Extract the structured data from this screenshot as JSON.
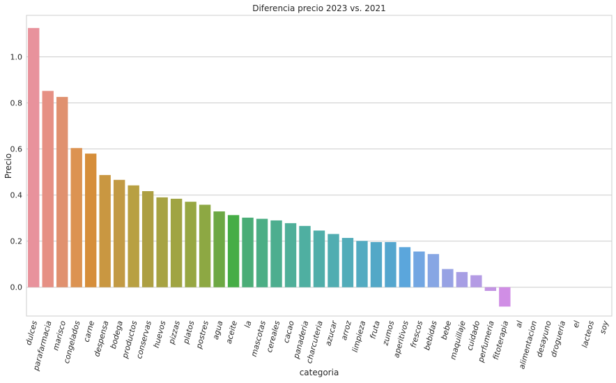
{
  "chart_data": {
    "type": "bar",
    "title": "Diferencia precio 2023 vs. 2021",
    "xlabel": "categoria",
    "ylabel": "Precio",
    "ylim": [
      -0.125,
      1.18
    ],
    "yticks": [
      0.0,
      0.2,
      0.4,
      0.6,
      0.8,
      1.0
    ],
    "ytick_labels": [
      "0.0",
      "0.2",
      "0.4",
      "0.6",
      "0.8",
      "1.0"
    ],
    "grid": true,
    "categories": [
      "dulces",
      "parafarmacia",
      "marisco",
      "congelados",
      "carne",
      "despensa",
      "bodega",
      "productos",
      "conservas",
      "huevos",
      "pizzas",
      "platos",
      "postres",
      "agua",
      "aceite",
      "la",
      "mascotas",
      "cereales",
      "cacao",
      "panaderia",
      "charcuteria",
      "azucar",
      "arroz",
      "limpieza",
      "fruta",
      "zumos",
      "aperitivos",
      "frescos",
      "bebidas",
      "bebe",
      "maquillaje",
      "cuidado",
      "perfumeria",
      "fitoterapia",
      "al",
      "alimentacion",
      "desayuno",
      "drogueria",
      "el",
      "lacteos",
      "soy"
    ],
    "values": [
      1.125,
      0.852,
      0.826,
      0.604,
      0.58,
      0.487,
      0.466,
      0.442,
      0.417,
      0.39,
      0.384,
      0.371,
      0.358,
      0.329,
      0.313,
      0.302,
      0.297,
      0.29,
      0.278,
      0.266,
      0.246,
      0.231,
      0.214,
      0.201,
      0.196,
      0.196,
      0.174,
      0.155,
      0.144,
      0.079,
      0.066,
      0.052,
      -0.016,
      -0.084,
      0,
      0,
      0,
      0,
      0,
      0,
      0
    ],
    "colors": [
      "#e8929c",
      "#e69084",
      "#e0916f",
      "#dc9352",
      "#d68e3a",
      "#c99741",
      "#c29a44",
      "#b8a042",
      "#ad9f42",
      "#a7a343",
      "#a0a442",
      "#97a742",
      "#8da843",
      "#6da844",
      "#46ad46",
      "#4aad77",
      "#4cae85",
      "#4dae8f",
      "#4faf99",
      "#4fafa1",
      "#50aea9",
      "#51adb1",
      "#52acb9",
      "#53abc1",
      "#53a8c7",
      "#54a6ce",
      "#5ba6dc",
      "#72a6e2",
      "#87a6e4",
      "#97a2e4",
      "#a79ee4",
      "#b49be4",
      "#c394e3",
      "#d08ee5",
      "#dc8cd5",
      "#e38bc8",
      "#e68cb9",
      "#e88dac",
      "#e98ea2",
      "#e98f98",
      "#e9909a"
    ]
  }
}
